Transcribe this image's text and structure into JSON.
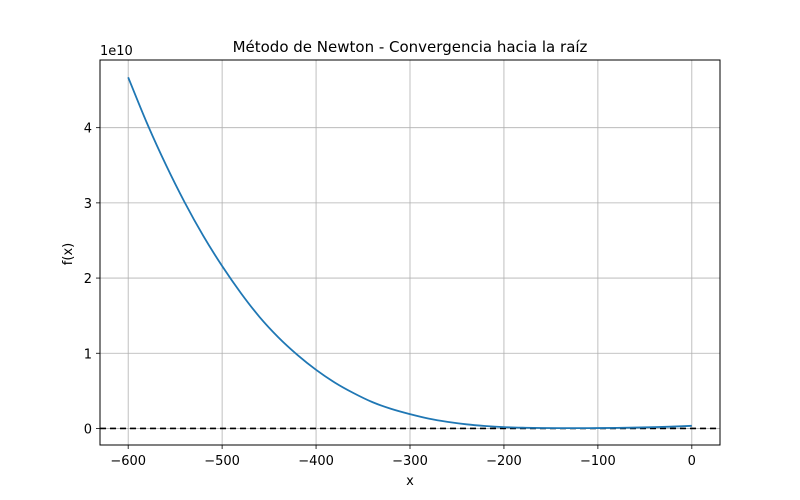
{
  "chart_data": {
    "type": "line",
    "title": "Método de Newton - Convergencia hacia la raíz",
    "xlabel": "x",
    "ylabel": "f(x)",
    "y_offset_label": "1e10",
    "xlim": [
      -630,
      30
    ],
    "ylim": [
      -0.22,
      4.9
    ],
    "y_scale_note": "values in units of 1e10",
    "xticks": [
      -600,
      -500,
      -400,
      -300,
      -200,
      -100,
      0
    ],
    "xtick_labels": [
      "−600",
      "−500",
      "−400",
      "−300",
      "−200",
      "−100",
      "0"
    ],
    "yticks": [
      0,
      1,
      2,
      3,
      4
    ],
    "ytick_labels": [
      "0",
      "1",
      "2",
      "3",
      "4"
    ],
    "grid": true,
    "series": [
      {
        "color": "#1f77b4",
        "x": [
          -600,
          -580,
          -560,
          -540,
          -520,
          -500,
          -480,
          -460,
          -440,
          -420,
          -400,
          -380,
          -360,
          -340,
          -320,
          -300,
          -280,
          -260,
          -240,
          -220,
          -200,
          -180,
          -160,
          -140,
          -120,
          -100,
          -80,
          -60,
          -40,
          -20,
          0
        ],
        "y": [
          4.67,
          4.06,
          3.51,
          3.01,
          2.56,
          2.16,
          1.8,
          1.48,
          1.21,
          0.98,
          0.78,
          0.61,
          0.47,
          0.35,
          0.26,
          0.19,
          0.13,
          0.087,
          0.055,
          0.033,
          0.018,
          0.01,
          0.006,
          0.004,
          0.004,
          0.005,
          0.008,
          0.012,
          0.018,
          0.025,
          0.035
        ]
      }
    ],
    "hline": {
      "y": 0,
      "color": "#000000",
      "style": "dashed"
    }
  }
}
